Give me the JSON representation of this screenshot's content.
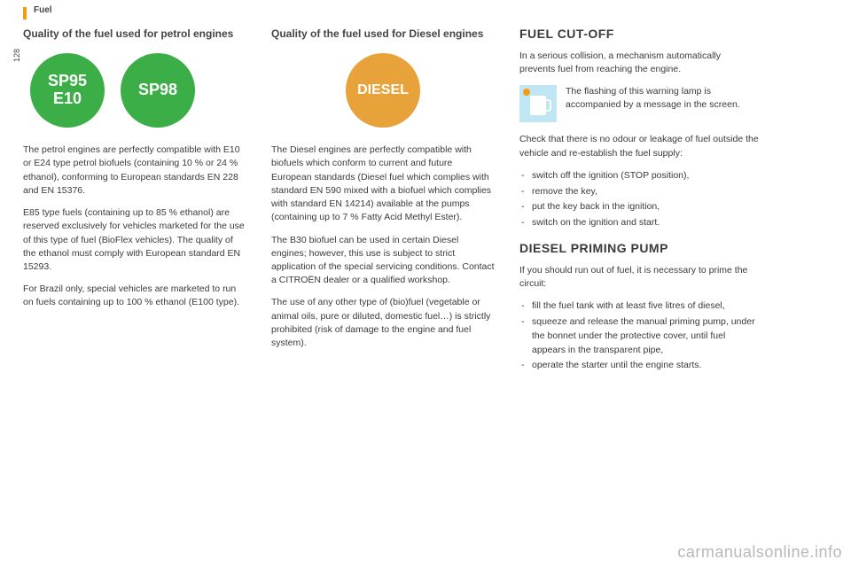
{
  "page_number": "128",
  "section_label": "Fuel",
  "col1": {
    "heading": "Quality of the fuel used for petrol engines",
    "badge1_line1": "SP95",
    "badge1_line2": "E10",
    "badge2": "SP98",
    "badge_colors": {
      "green": "#3cae47"
    },
    "p1": "The petrol engines are perfectly compatible with E10 or E24 type petrol biofuels (containing 10 % or 24 % ethanol), conforming to European standards EN 228 and EN 15376.",
    "p2": "E85 type fuels (containing up to 85 % ethanol) are reserved exclusively for vehicles marketed for the use of this type of fuel (BioFlex vehicles). The quality of the ethanol must comply with European standard EN 15293.",
    "p3": "For Brazil only, special vehicles are marketed to run on fuels containing up to 100 % ethanol (E100 type)."
  },
  "col2": {
    "heading": "Quality of the fuel used for Diesel engines",
    "badge": "DIESEL",
    "badge_color": "#e8a23a",
    "p1": "The Diesel engines are perfectly compatible with biofuels which conform to current and future European standards (Diesel fuel which complies with standard EN 590 mixed with a biofuel which complies with standard EN 14214) available at the pumps (containing up to 7 % Fatty Acid Methyl Ester).",
    "p2": "The B30 biofuel can be used in certain Diesel engines; however, this use is subject to strict application of the special servicing conditions. Contact a CITROËN dealer or a qualified workshop.",
    "p3": "The use of any other type of (bio)fuel (vegetable or animal oils, pure or diluted, domestic fuel…) is strictly prohibited (risk of damage to the engine and fuel system)."
  },
  "col3": {
    "h_cutoff": "FUEL CUT-OFF",
    "cutoff_intro": "In a serious collision, a mechanism automatically prevents fuel from reaching the engine.",
    "callout": "The flashing of this warning lamp is accompanied by a message in the screen.",
    "cutoff_check": "Check that there is no odour or leakage of fuel outside the vehicle and re-establish the fuel supply:",
    "cutoff_steps": [
      "switch off the ignition (STOP position),",
      "remove the key,",
      "put the key back in the ignition,",
      "switch on the ignition and start."
    ],
    "h_priming": "DIESEL PRIMING PUMP",
    "priming_intro": "If you should run out of fuel, it is necessary to prime the circuit:",
    "priming_steps": [
      "fill the fuel tank with at least five litres of diesel,",
      "squeeze and release the manual priming pump, under the bonnet under the protective cover, until fuel appears in the transparent pipe,",
      "operate the starter until the engine starts."
    ]
  },
  "watermark": "carmanualsonline.info"
}
